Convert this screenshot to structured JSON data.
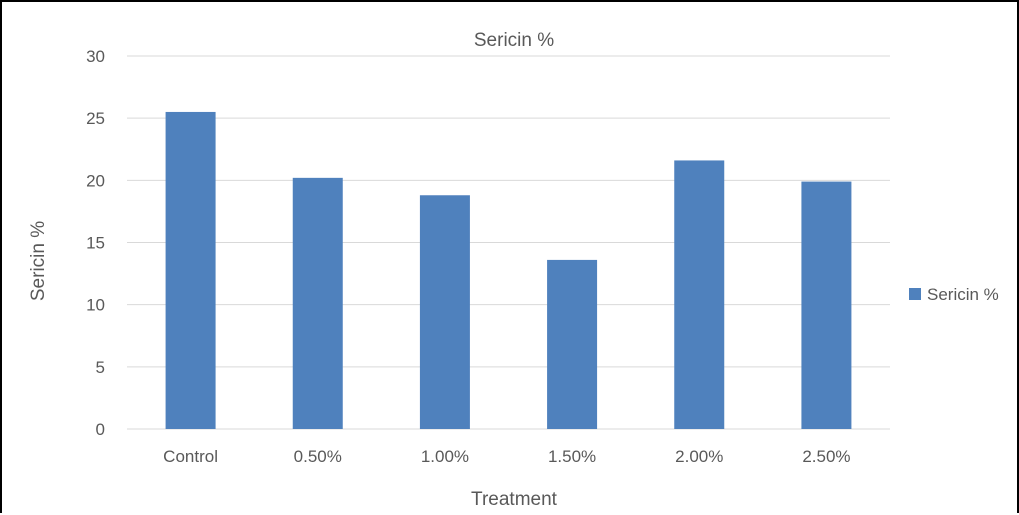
{
  "chart_data": {
    "type": "bar",
    "title": "Sericin %",
    "xlabel": "Treatment",
    "ylabel": "Sericin %",
    "categories": [
      "Control",
      "0.50%",
      "1.00%",
      "1.50%",
      "2.00%",
      "2.50%"
    ],
    "series": [
      {
        "name": "Sericin %",
        "values": [
          25.5,
          20.2,
          18.8,
          13.6,
          21.6,
          19.9
        ]
      }
    ],
    "ylim": [
      0,
      30
    ],
    "yticks": [
      "0",
      "5",
      "10",
      "15",
      "20",
      "25",
      "30"
    ],
    "grid": true,
    "legend": "right",
    "colors": {
      "bar": "#4F81BD",
      "grid": "#D9D9D9",
      "text": "#595959",
      "border": "#000000"
    }
  }
}
